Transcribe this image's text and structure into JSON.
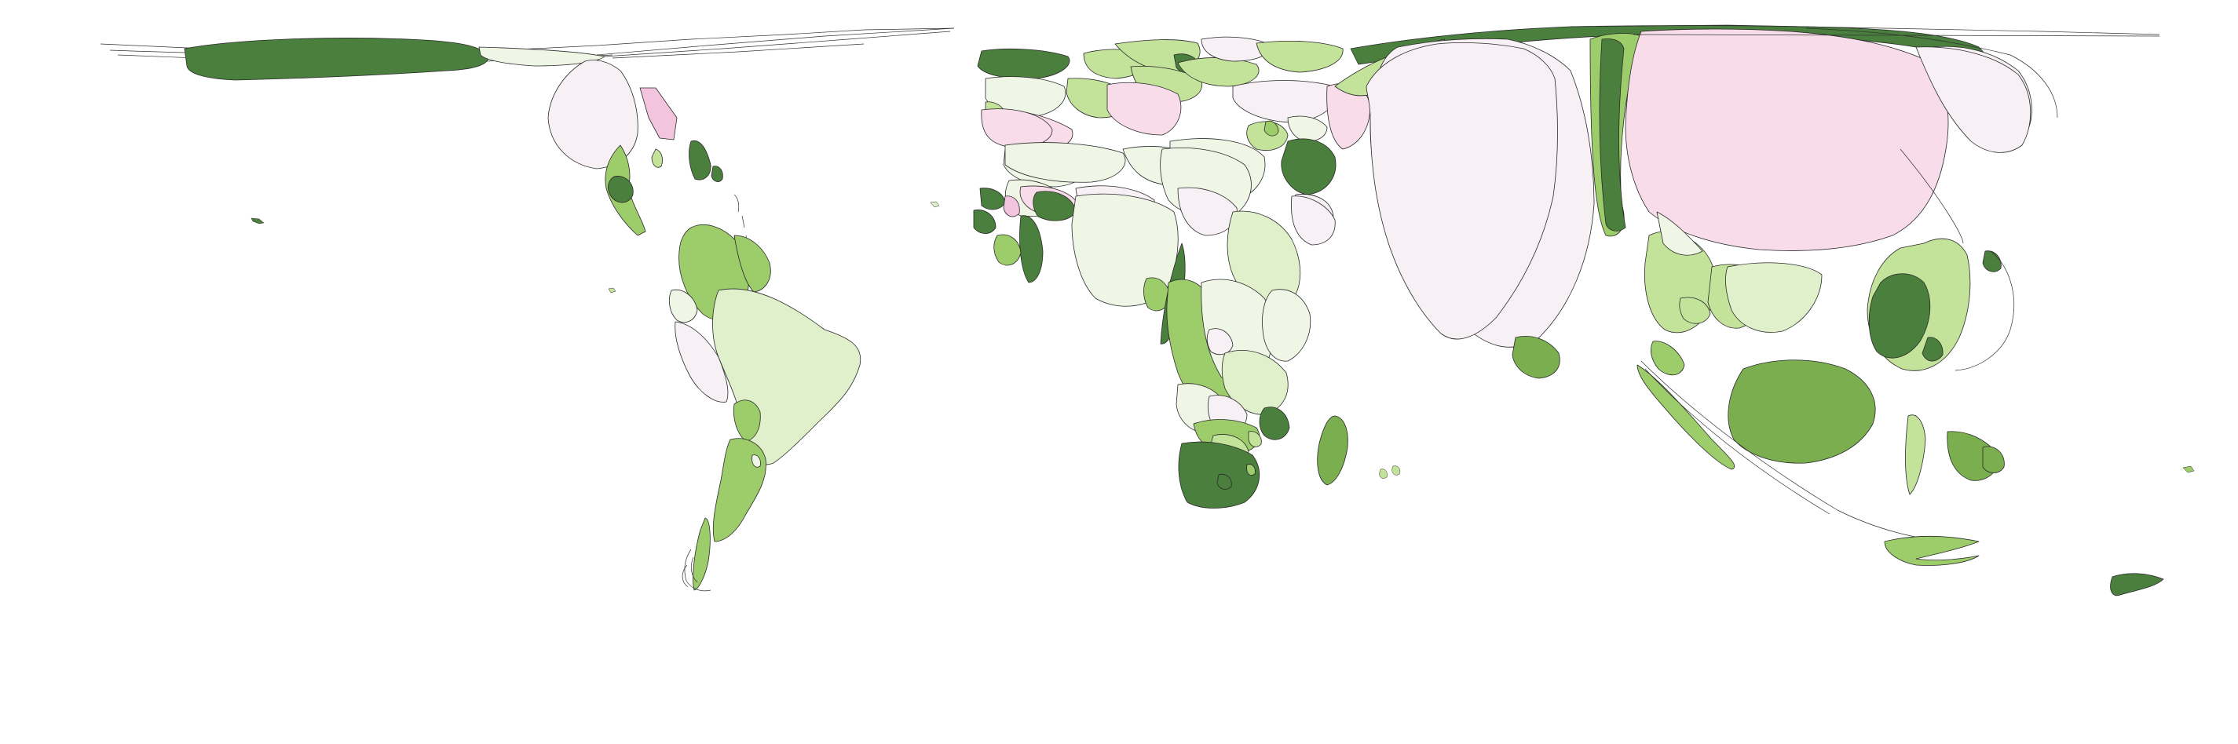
{
  "map": {
    "type": "cartogram",
    "title": "",
    "legend": "",
    "background_color": "#ffffff",
    "palette": {
      "dark_green": "#4a7f3d",
      "mid_green": "#7aae4f",
      "green": "#9ccd6a",
      "light_green": "#c3e39a",
      "pale_green": "#e0f0cb",
      "faint_green": "#eff6e6",
      "faint_pink": "#f7f0f4",
      "light_pink": "#f8dcea",
      "pink": "#f2c4dd",
      "outline": "#2a2a2a"
    }
  }
}
